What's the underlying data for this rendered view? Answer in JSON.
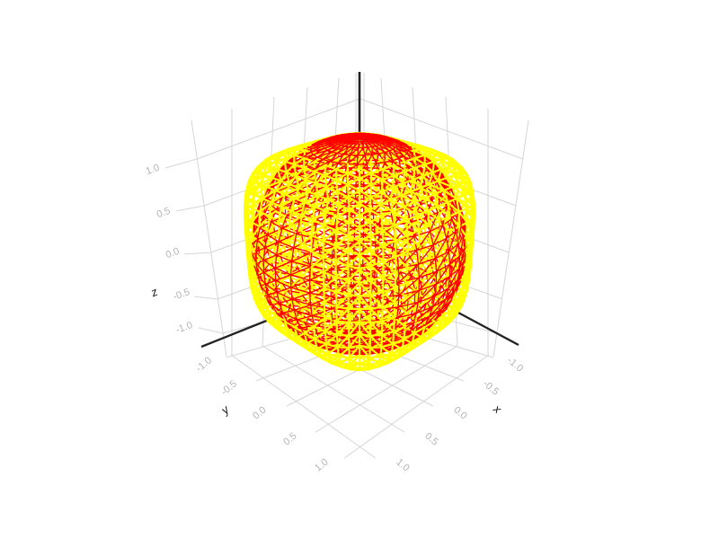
{
  "figure": {
    "background": "#ffffff"
  },
  "chart_data": {
    "type": "mesh3d-wireframe",
    "title": "",
    "axes": {
      "x": {
        "label": "x",
        "ticks": [
          -1.0,
          -0.5,
          0.0,
          0.5,
          1.0
        ],
        "tick_labels": [
          "-1.0",
          "-0.5",
          "0.0",
          "0.5",
          "1.0"
        ],
        "range": [
          -1.2,
          1.2
        ]
      },
      "y": {
        "label": "y",
        "ticks": [
          -1.0,
          -0.5,
          0.0,
          0.5,
          1.0
        ],
        "tick_labels": [
          "-1.0",
          "-0.5",
          "0.0",
          "0.5",
          "1.0"
        ],
        "range": [
          -1.2,
          1.2
        ]
      },
      "z": {
        "label": "z",
        "ticks": [
          -1.0,
          -0.5,
          0.0,
          0.5,
          1.0
        ],
        "tick_labels": [
          "-1.0",
          "-0.5",
          "0.0",
          "0.5",
          "1.0"
        ],
        "range": [
          -1.2,
          1.2
        ]
      }
    },
    "view": {
      "azimuth_deg": 45,
      "elevation_deg": 25,
      "distance": 5,
      "projection": "perspective"
    },
    "grid": "on",
    "legend": "none",
    "objects": [
      {
        "name": "rounded-cube",
        "shape": "superquadric",
        "pnorm": 4,
        "scale": 0.76,
        "segments_per_face": 13,
        "color": "#ffff00",
        "style": "wireframe",
        "line_width": 2.2
      },
      {
        "name": "sphere",
        "shape": "sphere",
        "radius": 0.85,
        "lat_segments": 28,
        "lon_segments": 34,
        "color": "#ff0000",
        "style": "wireframe",
        "line_width": 1.35
      }
    ],
    "colors": {
      "grid": "#d6d6d6",
      "tick_text": "#b4b4b4",
      "axis_title": "#141414",
      "axis_line": "#222222"
    }
  }
}
